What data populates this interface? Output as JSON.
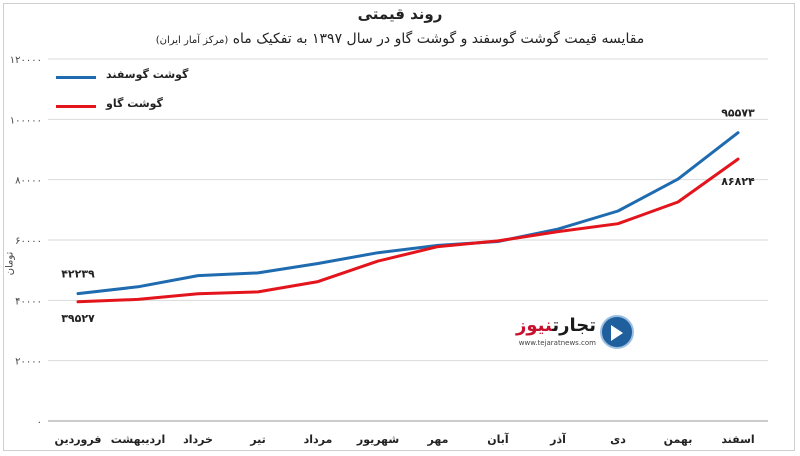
{
  "chart_data": {
    "type": "line",
    "title": "روند قیمتی",
    "subtitle": "مقایسه قیمت گوشت گوسفند و گوشت گاو در سال ۱۳۹۷ به تفکیک ماه",
    "source": "(مرکز آمار ایران)",
    "ylabel": "تومان",
    "xlabel": "",
    "ylim": [
      0,
      120000
    ],
    "yticks": [
      0,
      20000,
      40000,
      60000,
      80000,
      100000,
      120000
    ],
    "ytick_labels": [
      "۰",
      "۲۰۰۰۰",
      "۴۰۰۰۰",
      "۶۰۰۰۰",
      "۸۰۰۰۰",
      "۱۰۰۰۰۰",
      "۱۲۰۰۰۰"
    ],
    "grid": true,
    "legend_position": "top-left",
    "categories": [
      "فروردین",
      "اردیبهشت",
      "خرداد",
      "تیر",
      "مرداد",
      "شهریور",
      "مهر",
      "آبان",
      "آذر",
      "دی",
      "بهمن",
      "اسفند"
    ],
    "series": [
      {
        "name": "گوشت گوسفند",
        "color": "#1f6bb0",
        "values": [
          42239,
          44500,
          48200,
          49100,
          52200,
          55800,
          58200,
          59500,
          63600,
          69600,
          80200,
          95573
        ],
        "labels": {
          "first": "۴۲۲۳۹",
          "last": "۹۵۵۷۳"
        }
      },
      {
        "name": "گوشت گاو",
        "color": "#e3141b",
        "values": [
          39527,
          40300,
          42200,
          42800,
          46200,
          53000,
          57800,
          59700,
          62800,
          65400,
          72600,
          86824
        ],
        "labels": {
          "first": "۳۹۵۲۷",
          "last": "۸۶۸۲۴"
        }
      }
    ]
  },
  "logo": {
    "name_main": "تجارت",
    "name_accent": "نیوز",
    "url": "www.tejaratnews.com"
  }
}
